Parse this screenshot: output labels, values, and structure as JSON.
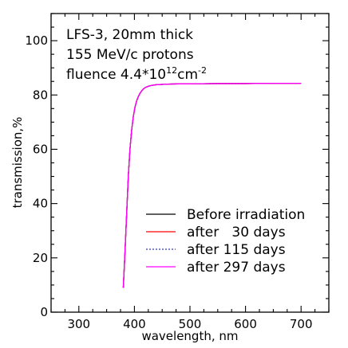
{
  "chart_data": {
    "type": "line",
    "title": "",
    "xlabel": "wavelength, nm",
    "ylabel": "transmission,%",
    "xlim": [
      250,
      750
    ],
    "ylim": [
      0,
      110
    ],
    "xticks": [
      300,
      400,
      500,
      600,
      700
    ],
    "yticks": [
      0,
      20,
      40,
      60,
      80,
      100
    ],
    "x_minor_step": 25,
    "y_minor_step": 5,
    "grid": false,
    "annotation": {
      "line1": "LFS-3, 20mm thick",
      "line2": "155 MeV/c protons",
      "line3_prefix": "fluence 4.4*10",
      "line3_sup1": "12",
      "line3_mid": "cm",
      "line3_sup2": "-2"
    },
    "legend_position": "lower-right",
    "x": [
      380,
      383,
      386,
      389,
      392,
      395,
      398,
      401,
      404,
      407,
      410,
      413,
      416,
      420,
      425,
      430,
      440,
      450,
      460,
      480,
      500,
      550,
      600,
      650,
      700
    ],
    "series": [
      {
        "name": "Before irradiation",
        "color": "#000000",
        "dash": "solid",
        "values": [
          9,
          22,
          36,
          50,
          60,
          67,
          72,
          75.5,
          77.8,
          79.4,
          80.6,
          81.5,
          82.2,
          82.8,
          83.2,
          83.5,
          83.8,
          83.9,
          84.0,
          84.1,
          84.1,
          84.2,
          84.2,
          84.3,
          84.3
        ]
      },
      {
        "name": "after   30 days",
        "color": "#ff0000",
        "dash": "solid",
        "values": [
          9,
          22,
          36,
          50,
          60,
          67,
          72,
          75.5,
          77.8,
          79.4,
          80.6,
          81.5,
          82.2,
          82.8,
          83.2,
          83.5,
          83.8,
          83.9,
          84.0,
          84.1,
          84.1,
          84.2,
          84.2,
          84.3,
          84.3
        ]
      },
      {
        "name": "after 115 days",
        "color": "#3333cc",
        "dash": "dotted",
        "values": [
          9,
          22,
          36,
          50,
          60,
          67,
          72,
          75.5,
          77.8,
          79.4,
          80.6,
          81.5,
          82.2,
          82.8,
          83.2,
          83.5,
          83.8,
          83.9,
          84.0,
          84.1,
          84.1,
          84.2,
          84.2,
          84.3,
          84.3
        ]
      },
      {
        "name": "after 297 days",
        "color": "#ff00ff",
        "dash": "solid",
        "values": [
          9,
          22,
          36,
          50,
          60,
          67,
          72,
          75.5,
          77.8,
          79.4,
          80.6,
          81.5,
          82.2,
          82.8,
          83.2,
          83.5,
          83.8,
          83.9,
          84.0,
          84.1,
          84.1,
          84.2,
          84.2,
          84.3,
          84.3
        ]
      }
    ]
  }
}
